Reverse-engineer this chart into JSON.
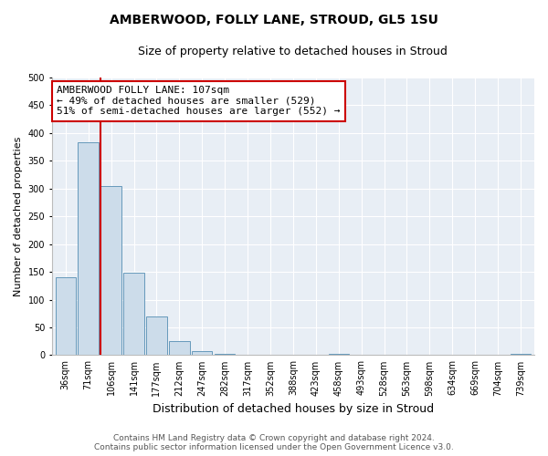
{
  "title": "AMBERWOOD, FOLLY LANE, STROUD, GL5 1SU",
  "subtitle": "Size of property relative to detached houses in Stroud",
  "xlabel": "Distribution of detached houses by size in Stroud",
  "ylabel": "Number of detached properties",
  "bin_labels": [
    "36sqm",
    "71sqm",
    "106sqm",
    "141sqm",
    "177sqm",
    "212sqm",
    "247sqm",
    "282sqm",
    "317sqm",
    "352sqm",
    "388sqm",
    "423sqm",
    "458sqm",
    "493sqm",
    "528sqm",
    "563sqm",
    "598sqm",
    "634sqm",
    "669sqm",
    "704sqm",
    "739sqm"
  ],
  "bar_values": [
    141,
    383,
    304,
    148,
    70,
    25,
    8,
    2,
    0,
    0,
    0,
    0,
    2,
    0,
    0,
    0,
    0,
    0,
    0,
    0,
    2
  ],
  "bar_color": "#ccdcea",
  "bar_edge_color": "#6699bb",
  "vline_x_index": 2,
  "vline_color": "#cc0000",
  "annotation_line1": "AMBERWOOD FOLLY LANE: 107sqm",
  "annotation_line2": "← 49% of detached houses are smaller (529)",
  "annotation_line3": "51% of semi-detached houses are larger (552) →",
  "annotation_box_facecolor": "#ffffff",
  "annotation_box_edgecolor": "#cc0000",
  "ylim": [
    0,
    500
  ],
  "yticks": [
    0,
    50,
    100,
    150,
    200,
    250,
    300,
    350,
    400,
    450,
    500
  ],
  "footnote_line1": "Contains HM Land Registry data © Crown copyright and database right 2024.",
  "footnote_line2": "Contains public sector information licensed under the Open Government Licence v3.0.",
  "fig_facecolor": "#ffffff",
  "plot_facecolor": "#e8eef5",
  "grid_color": "#ffffff",
  "title_fontsize": 10,
  "subtitle_fontsize": 9,
  "xlabel_fontsize": 9,
  "ylabel_fontsize": 8,
  "tick_fontsize": 7,
  "annotation_fontsize": 8,
  "footnote_fontsize": 6.5
}
